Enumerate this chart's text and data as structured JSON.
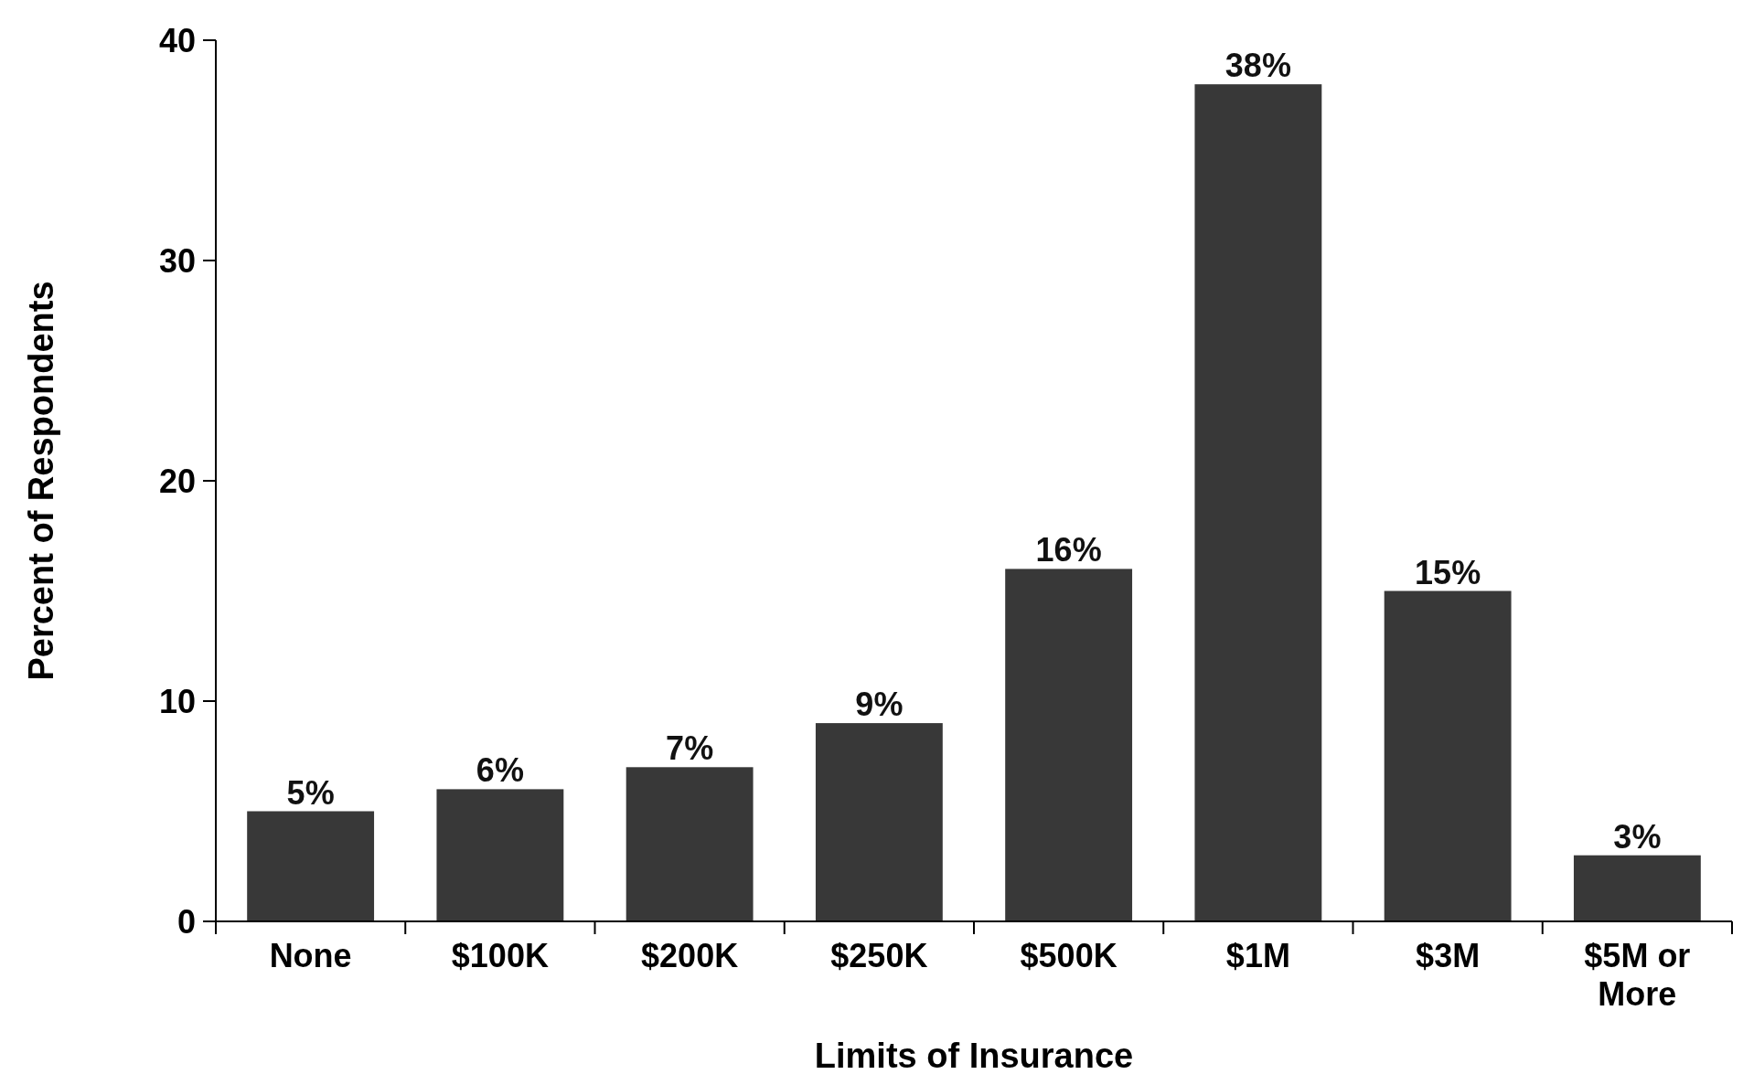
{
  "chart_data": {
    "type": "bar",
    "xlabel": "Limits of Insurance",
    "ylabel": "Percent of Respondents",
    "categories": [
      "None",
      "$100K",
      "$200K",
      "$250K",
      "$500K",
      "$1M",
      "$3M",
      "$5M or More"
    ],
    "values": [
      5,
      6,
      7,
      9,
      16,
      38,
      15,
      3
    ],
    "value_labels": [
      "5%",
      "6%",
      "7%",
      "9%",
      "16%",
      "38%",
      "15%",
      "3%"
    ],
    "color": "#383838",
    "ylim": [
      0,
      40
    ],
    "yticks": [
      0,
      10,
      20,
      30,
      40
    ],
    "grid": false
  }
}
